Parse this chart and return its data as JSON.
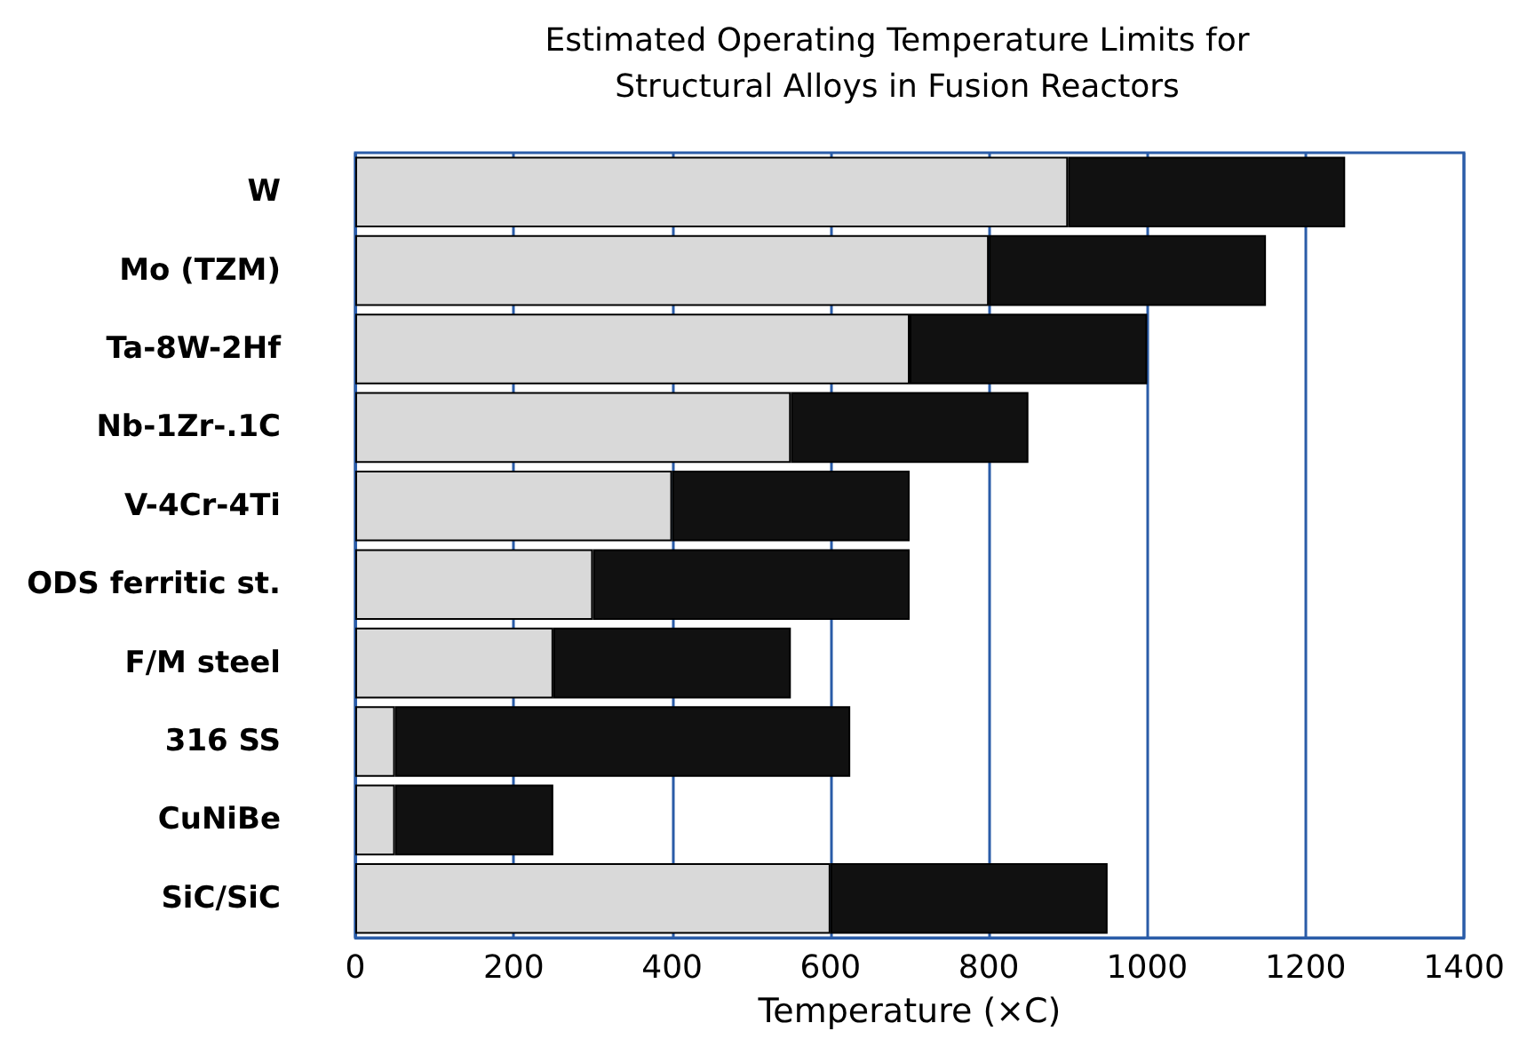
{
  "chart_data": {
    "type": "bar",
    "orientation": "horizontal",
    "stacked": true,
    "title": "Estimated Operating Temperature Limits for\nStructural Alloys in Fusion Reactors",
    "xlabel": "Temperature (×C)",
    "categories": [
      "W",
      "Mo (TZM)",
      "Ta-8W-2Hf",
      "Nb-1Zr-.1C",
      "V-4Cr-4Ti",
      "ODS ferritic st.",
      "F/M steel",
      "316 SS",
      "CuNiBe",
      "SiC/SiC"
    ],
    "series": [
      {
        "color": "#d9d9d9",
        "values": [
          900,
          800,
          700,
          550,
          400,
          300,
          250,
          50,
          50,
          600
        ]
      },
      {
        "color": "#111111",
        "values": [
          350,
          350,
          300,
          300,
          300,
          400,
          300,
          575,
          200,
          350
        ]
      }
    ],
    "xlim": [
      0,
      1400
    ],
    "xticks": [
      0,
      200,
      400,
      600,
      800,
      1000,
      1200,
      1400
    ],
    "grid": "x"
  }
}
